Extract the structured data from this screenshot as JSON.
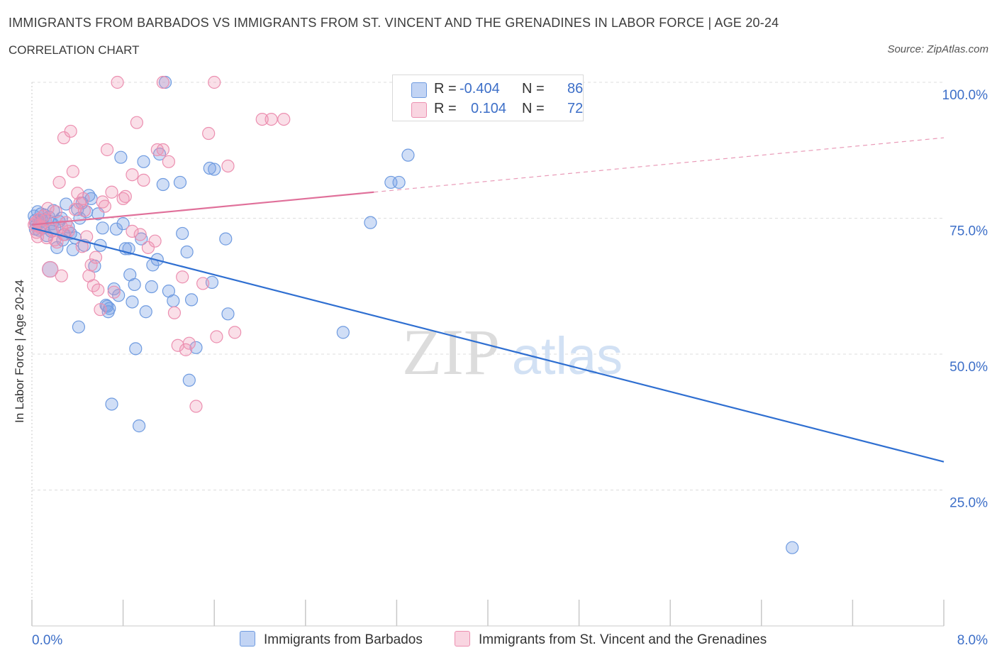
{
  "header": {
    "title": "IMMIGRANTS FROM BARBADOS VS IMMIGRANTS FROM ST. VINCENT AND THE GRENADINES IN LABOR FORCE | AGE 20-24",
    "subtitle": "CORRELATION CHART",
    "source": "Source: ZipAtlas.com"
  },
  "watermark": {
    "zip": "ZIP",
    "atlas": "atlas"
  },
  "stats_legend": {
    "rows": [
      {
        "r_label": "R =",
        "r_value": "-0.404",
        "n_label": "N =",
        "n_value": "86",
        "color": "#6f9be0"
      },
      {
        "r_label": "R =",
        "r_value": "0.104",
        "n_label": "N =",
        "n_value": "72",
        "color": "#ec8fb0"
      }
    ]
  },
  "chart_data": {
    "type": "scatter",
    "ylabel": "In Labor Force | Age 20-24",
    "x_tick_labels": {
      "left": "0.0%",
      "right": "8.0%"
    },
    "y_tick_labels": [
      "100.0%",
      "75.0%",
      "50.0%",
      "25.0%"
    ],
    "xlim": [
      0,
      8
    ],
    "ylim": [
      0,
      100
    ],
    "grid": true,
    "legend_position": "bottom",
    "series": [
      {
        "name": "Immigrants from Barbados",
        "color": "#6f9be0",
        "fill": "rgba(120,160,230,0.35)",
        "trend": {
          "x": [
            0,
            8
          ],
          "y": [
            73.2,
            30.2
          ],
          "dashed_from": null
        },
        "points": [
          [
            0.02,
            75.4
          ],
          [
            0.03,
            74.6
          ],
          [
            0.04,
            73.8
          ],
          [
            0.05,
            76.2
          ],
          [
            0.06,
            72.8
          ],
          [
            0.07,
            74.2
          ],
          [
            0.08,
            75.8
          ],
          [
            0.1,
            73.2
          ],
          [
            0.12,
            74.6
          ],
          [
            0.13,
            71.8
          ],
          [
            0.15,
            75.2
          ],
          [
            0.17,
            72.6
          ],
          [
            0.18,
            74.0
          ],
          [
            0.2,
            73.2
          ],
          [
            0.22,
            69.6
          ],
          [
            0.24,
            74.4
          ],
          [
            0.26,
            75.0
          ],
          [
            0.28,
            72.0
          ],
          [
            0.3,
            77.6
          ],
          [
            0.32,
            73.4
          ],
          [
            0.34,
            72.2
          ],
          [
            0.36,
            69.2
          ],
          [
            0.38,
            71.4
          ],
          [
            0.4,
            76.6
          ],
          [
            0.42,
            75.0
          ],
          [
            0.44,
            77.8
          ],
          [
            0.46,
            70.0
          ],
          [
            0.48,
            76.2
          ],
          [
            0.5,
            79.2
          ],
          [
            0.52,
            78.6
          ],
          [
            0.55,
            66.2
          ],
          [
            0.58,
            75.8
          ],
          [
            0.6,
            70.0
          ],
          [
            0.62,
            73.2
          ],
          [
            0.65,
            59.0
          ],
          [
            0.68,
            58.4
          ],
          [
            0.7,
            40.8
          ],
          [
            0.72,
            62.0
          ],
          [
            0.74,
            73.0
          ],
          [
            0.76,
            60.8
          ],
          [
            0.78,
            86.2
          ],
          [
            0.8,
            74.0
          ],
          [
            0.85,
            69.4
          ],
          [
            0.86,
            64.6
          ],
          [
            0.88,
            59.6
          ],
          [
            0.9,
            62.8
          ],
          [
            0.91,
            51.0
          ],
          [
            0.94,
            36.8
          ],
          [
            0.96,
            71.2
          ],
          [
            0.98,
            85.4
          ],
          [
            1.0,
            57.8
          ],
          [
            1.05,
            62.4
          ],
          [
            1.06,
            66.4
          ],
          [
            1.1,
            67.4
          ],
          [
            1.12,
            86.8
          ],
          [
            1.15,
            81.2
          ],
          [
            1.2,
            61.6
          ],
          [
            1.24,
            59.8
          ],
          [
            1.3,
            81.6
          ],
          [
            1.32,
            72.2
          ],
          [
            1.36,
            68.8
          ],
          [
            1.4,
            60.0
          ],
          [
            1.44,
            51.2
          ],
          [
            1.58,
            63.2
          ],
          [
            1.6,
            84.0
          ],
          [
            1.7,
            71.2
          ],
          [
            1.72,
            57.4
          ],
          [
            2.73,
            54.0
          ],
          [
            3.15,
            81.6
          ],
          [
            3.22,
            81.6
          ],
          [
            3.3,
            86.6
          ],
          [
            0.03,
            73.0
          ],
          [
            0.09,
            74.6
          ],
          [
            0.16,
            65.6
          ],
          [
            0.27,
            71.0
          ],
          [
            0.67,
            57.8
          ],
          [
            0.82,
            69.4
          ],
          [
            1.38,
            45.2
          ],
          [
            1.56,
            84.2
          ],
          [
            1.17,
            100.0
          ],
          [
            0.66,
            58.8
          ],
          [
            0.41,
            55.0
          ],
          [
            2.97,
            74.2
          ],
          [
            0.11,
            75.6
          ],
          [
            0.19,
            76.4
          ],
          [
            6.67,
            14.4
          ]
        ]
      },
      {
        "name": "Immigrants from St. Vincent and the Grenadines",
        "color": "#ec8fb0",
        "fill": "rgba(240,150,180,0.3)",
        "trend": {
          "x": [
            0,
            8
          ],
          "y": [
            73.8,
            89.8
          ],
          "dashed_from": 3.0
        },
        "points": [
          [
            0.02,
            73.8
          ],
          [
            0.04,
            72.4
          ],
          [
            0.05,
            71.6
          ],
          [
            0.06,
            74.8
          ],
          [
            0.08,
            73.2
          ],
          [
            0.1,
            75.4
          ],
          [
            0.12,
            74.6
          ],
          [
            0.14,
            76.8
          ],
          [
            0.16,
            65.6
          ],
          [
            0.18,
            72.8
          ],
          [
            0.2,
            71.0
          ],
          [
            0.22,
            70.6
          ],
          [
            0.24,
            81.6
          ],
          [
            0.26,
            64.4
          ],
          [
            0.28,
            89.8
          ],
          [
            0.3,
            74.2
          ],
          [
            0.32,
            72.6
          ],
          [
            0.34,
            91.0
          ],
          [
            0.36,
            83.6
          ],
          [
            0.38,
            76.6
          ],
          [
            0.4,
            79.6
          ],
          [
            0.42,
            77.8
          ],
          [
            0.44,
            69.8
          ],
          [
            0.46,
            76.4
          ],
          [
            0.48,
            71.6
          ],
          [
            0.5,
            64.4
          ],
          [
            0.52,
            66.4
          ],
          [
            0.54,
            62.6
          ],
          [
            0.56,
            67.8
          ],
          [
            0.58,
            61.8
          ],
          [
            0.6,
            58.2
          ],
          [
            0.62,
            78.0
          ],
          [
            0.64,
            77.2
          ],
          [
            0.66,
            87.6
          ],
          [
            0.7,
            79.8
          ],
          [
            0.75,
            100.0
          ],
          [
            0.8,
            78.6
          ],
          [
            0.82,
            79.0
          ],
          [
            0.88,
            83.0
          ],
          [
            0.92,
            92.6
          ],
          [
            0.95,
            72.0
          ],
          [
            0.98,
            82.0
          ],
          [
            1.02,
            69.6
          ],
          [
            1.08,
            70.8
          ],
          [
            1.1,
            87.6
          ],
          [
            1.15,
            87.6
          ],
          [
            1.2,
            85.4
          ],
          [
            1.25,
            57.6
          ],
          [
            1.28,
            51.6
          ],
          [
            1.32,
            64.2
          ],
          [
            1.38,
            52.0
          ],
          [
            1.44,
            40.4
          ],
          [
            1.5,
            63.0
          ],
          [
            1.55,
            90.6
          ],
          [
            1.62,
            53.2
          ],
          [
            1.72,
            84.6
          ],
          [
            1.78,
            54.0
          ],
          [
            2.02,
            93.2
          ],
          [
            2.1,
            93.2
          ],
          [
            2.21,
            93.2
          ],
          [
            1.15,
            100.0
          ],
          [
            1.6,
            100.0
          ],
          [
            0.03,
            74.2
          ],
          [
            0.07,
            73.6
          ],
          [
            0.13,
            71.4
          ],
          [
            0.21,
            76.2
          ],
          [
            0.29,
            72.0
          ],
          [
            0.45,
            78.6
          ],
          [
            0.72,
            61.4
          ],
          [
            0.88,
            72.6
          ],
          [
            1.35,
            50.8
          ],
          [
            0.26,
            73.4
          ]
        ]
      }
    ]
  }
}
